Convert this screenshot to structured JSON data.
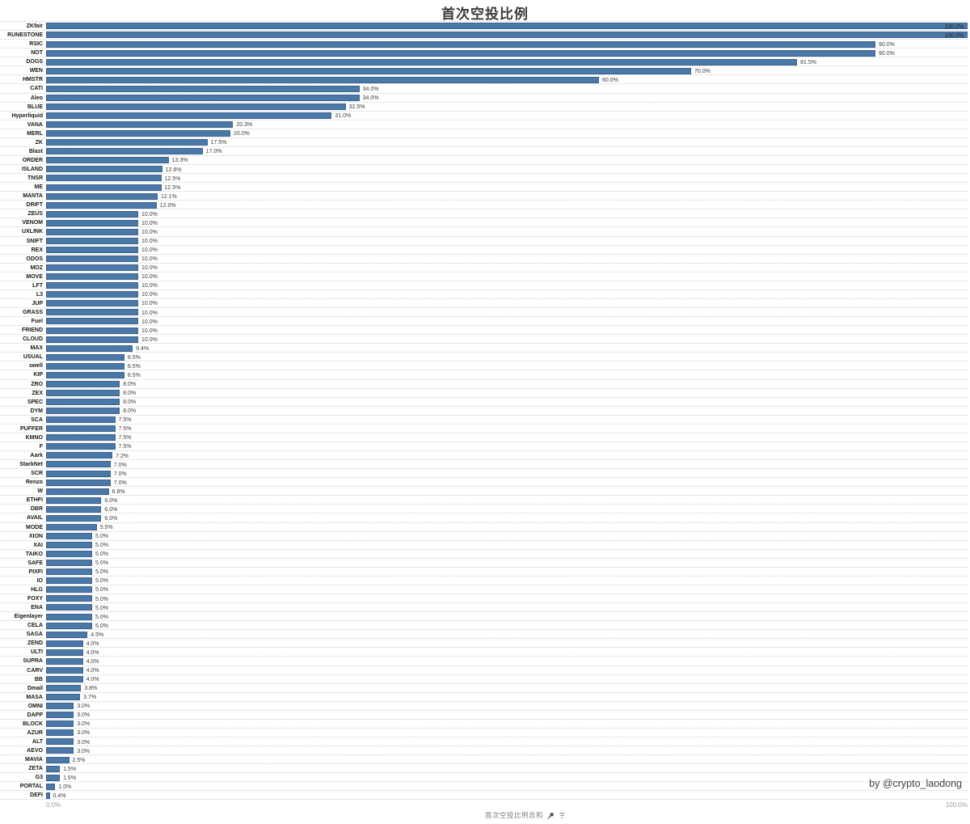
{
  "title": "首次空投比例",
  "watermark": "by @crypto_laodong",
  "legend": {
    "label": "首次空投比例总和"
  },
  "axis": {
    "x_min_label": "0.0%",
    "x_max_label": "100.0%"
  },
  "colors": {
    "bar": "#4a79a8",
    "bar_border": "#3d6a9b",
    "grid": "#cfcfcf",
    "title_text": "#3c3c3c",
    "category_text": "#161616",
    "value_text": "#3d3d3d",
    "axis_tick_text": "#9aa0a6",
    "legend_text": "#7e7e7e",
    "watermark_text": "#3f3f3f",
    "background": "#ffffff"
  },
  "chart_data": {
    "type": "bar",
    "orientation": "horizontal",
    "title": "首次空投比例",
    "xlabel": "",
    "ylabel": "",
    "xlim": [
      0,
      100
    ],
    "grid": "dotted-row-separators",
    "legend_position": "bottom-center",
    "value_label_format": "one_decimal_percent",
    "categories": [
      "ZKfair",
      "RUNESTONE",
      "RSIC",
      "NOT",
      "DOGS",
      "WEN",
      "HMSTR",
      "CATI",
      "Aleo",
      "BLUE",
      "Hyperliquid",
      "VANA",
      "MERL",
      "ZK",
      "Blast",
      "ORDER",
      "ISLAND",
      "TNSR",
      "ME",
      "MANTA",
      "DRIFT",
      "ZEUS",
      "VENOM",
      "UXLINK",
      "SNIFT",
      "REX",
      "ODOS",
      "MOZ",
      "MOVE",
      "LFT",
      "L3",
      "JUP",
      "GRASS",
      "Fuel",
      "FRIEND",
      "CLOUD",
      "MAX",
      "USUAL",
      "swell",
      "KIP",
      "ZRO",
      "ZEX",
      "SPEC",
      "DYM",
      "SCA",
      "PUFFER",
      "KMNO",
      "F",
      "Aark",
      "StarkNet",
      "SCR",
      "Renzo",
      "W",
      "ETHFI",
      "DBR",
      "AVAIL",
      "MODE",
      "XION",
      "XAI",
      "TAIKO",
      "SAFE",
      "PIXFI",
      "IO",
      "HLG",
      "FOXY",
      "ENA",
      "Eigenlayer",
      "CELA",
      "SAGA",
      "ZEND",
      "ULTI",
      "SUPRA",
      "CARV",
      "BB",
      "Dmail",
      "MASA",
      "OMNI",
      "DAPP",
      "BLOCK",
      "AZUR",
      "ALT",
      "AEVO",
      "MAVIA",
      "ZETA",
      "G3",
      "PORTAL",
      "DEFI"
    ],
    "values": [
      100.0,
      100.0,
      90.0,
      90.0,
      81.5,
      70.0,
      60.0,
      34.0,
      34.0,
      32.5,
      31.0,
      20.3,
      20.0,
      17.5,
      17.0,
      13.3,
      12.6,
      12.5,
      12.5,
      12.1,
      12.0,
      10.0,
      10.0,
      10.0,
      10.0,
      10.0,
      10.0,
      10.0,
      10.0,
      10.0,
      10.0,
      10.0,
      10.0,
      10.0,
      10.0,
      10.0,
      9.4,
      8.5,
      8.5,
      8.5,
      8.0,
      8.0,
      8.0,
      8.0,
      7.5,
      7.5,
      7.5,
      7.5,
      7.2,
      7.0,
      7.0,
      7.0,
      6.8,
      6.0,
      6.0,
      6.0,
      5.5,
      5.0,
      5.0,
      5.0,
      5.0,
      5.0,
      5.0,
      5.0,
      5.0,
      5.0,
      5.0,
      5.0,
      4.5,
      4.0,
      4.0,
      4.0,
      4.0,
      4.0,
      3.8,
      3.7,
      3.0,
      3.0,
      3.0,
      3.0,
      3.0,
      3.0,
      2.5,
      1.5,
      1.5,
      1.0,
      0.4
    ]
  }
}
